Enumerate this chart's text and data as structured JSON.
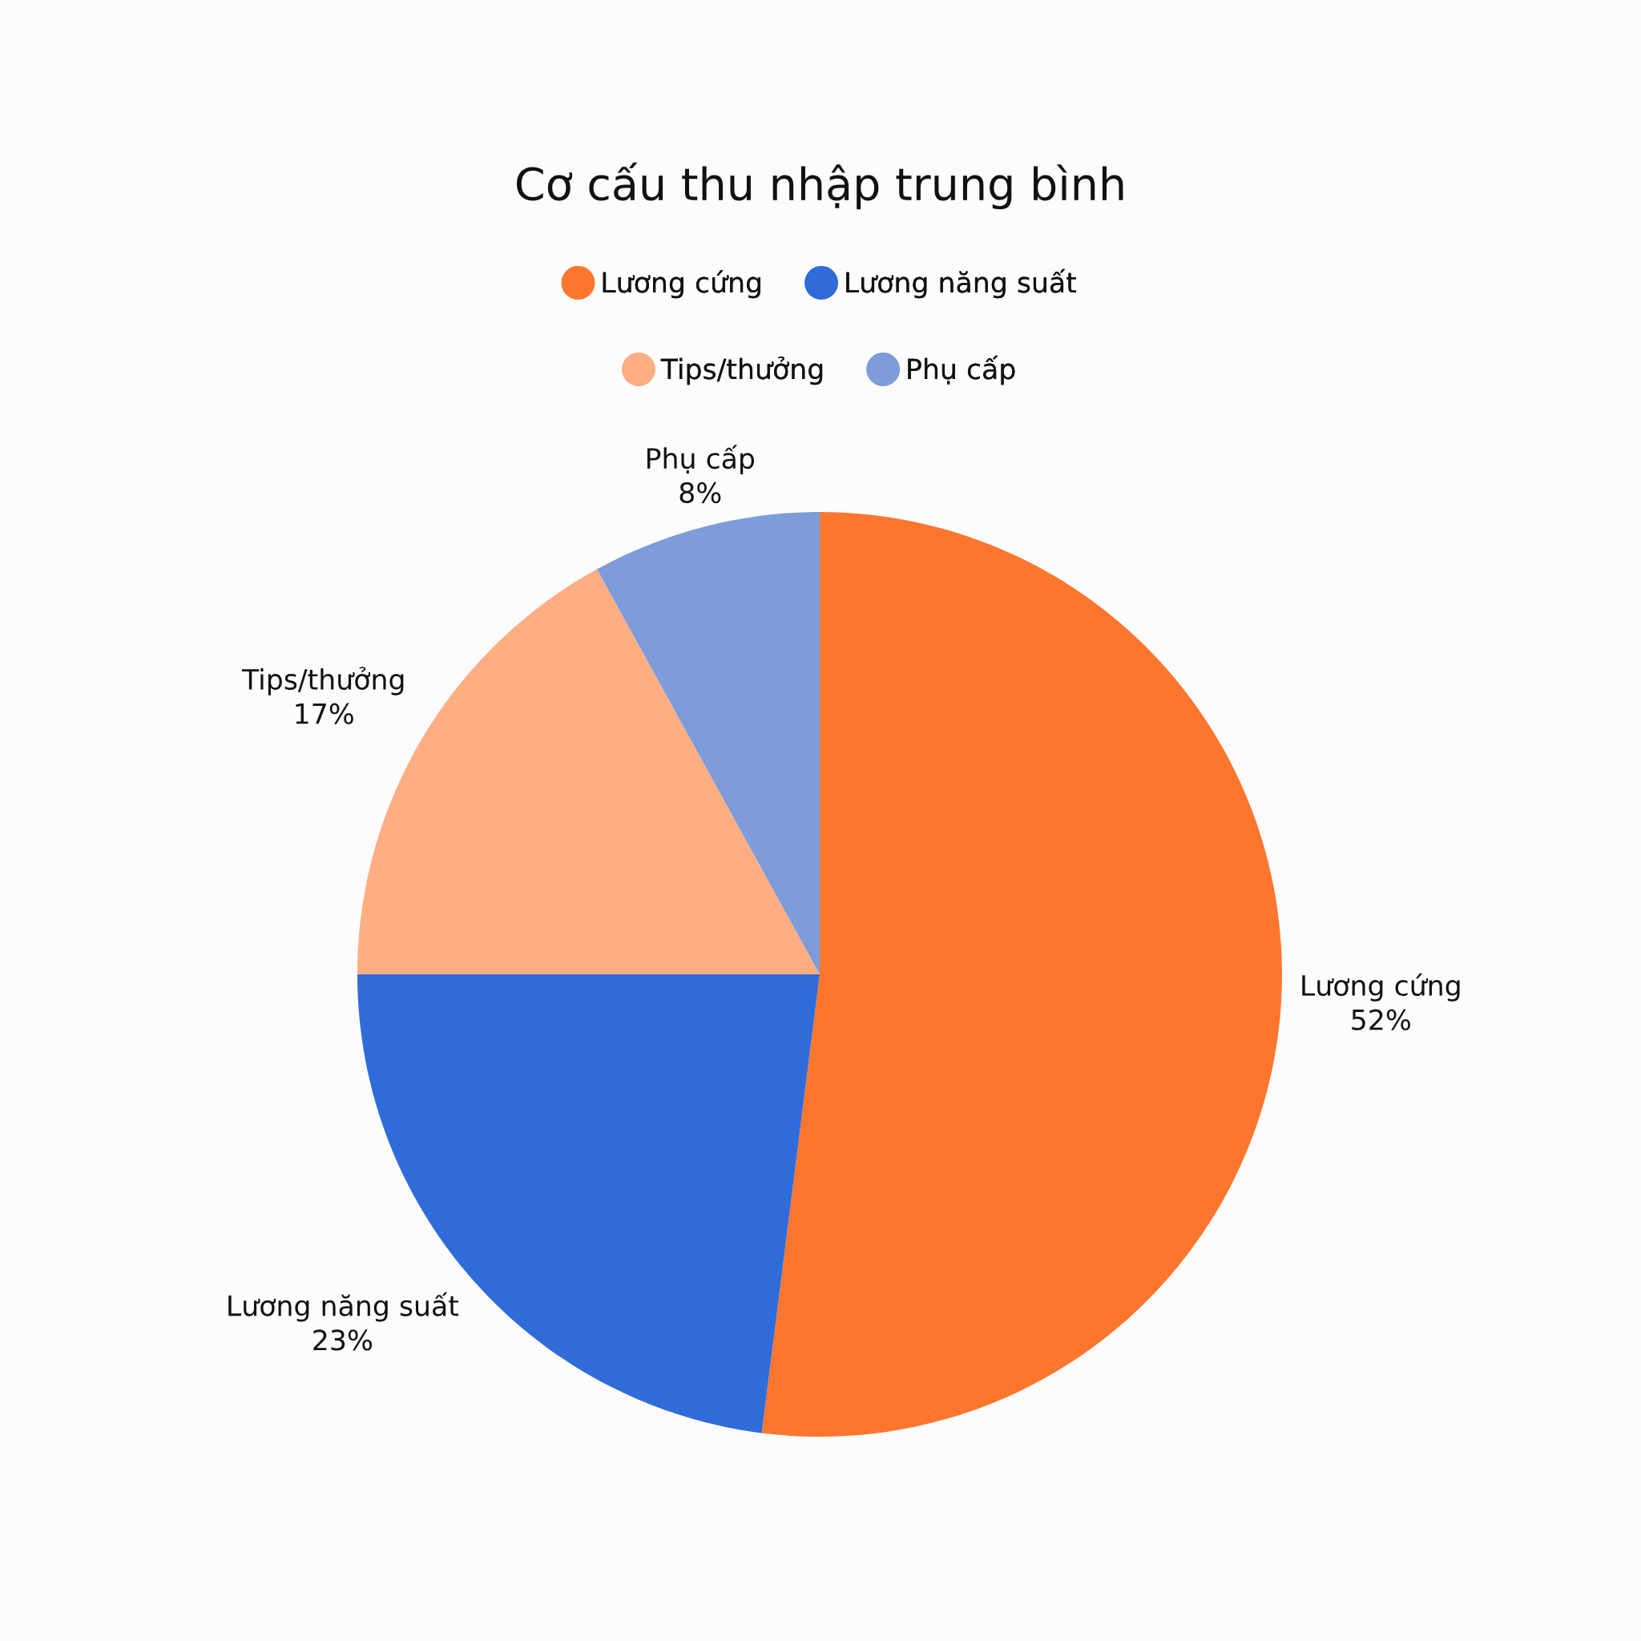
{
  "chart_data": {
    "type": "pie",
    "title": "Cơ cấu thu nhập trung bình",
    "categories": [
      "Lương cứng",
      "Lương năng suất",
      "Tips/thưởng",
      "Phụ cấp"
    ],
    "values": [
      52,
      23,
      17,
      8
    ],
    "value_labels": [
      "52%",
      "23%",
      "17%",
      "8%"
    ],
    "colors": [
      "#fc762e",
      "#306cd9",
      "#ffae84",
      "#7d9cd9"
    ],
    "legend": "top"
  }
}
